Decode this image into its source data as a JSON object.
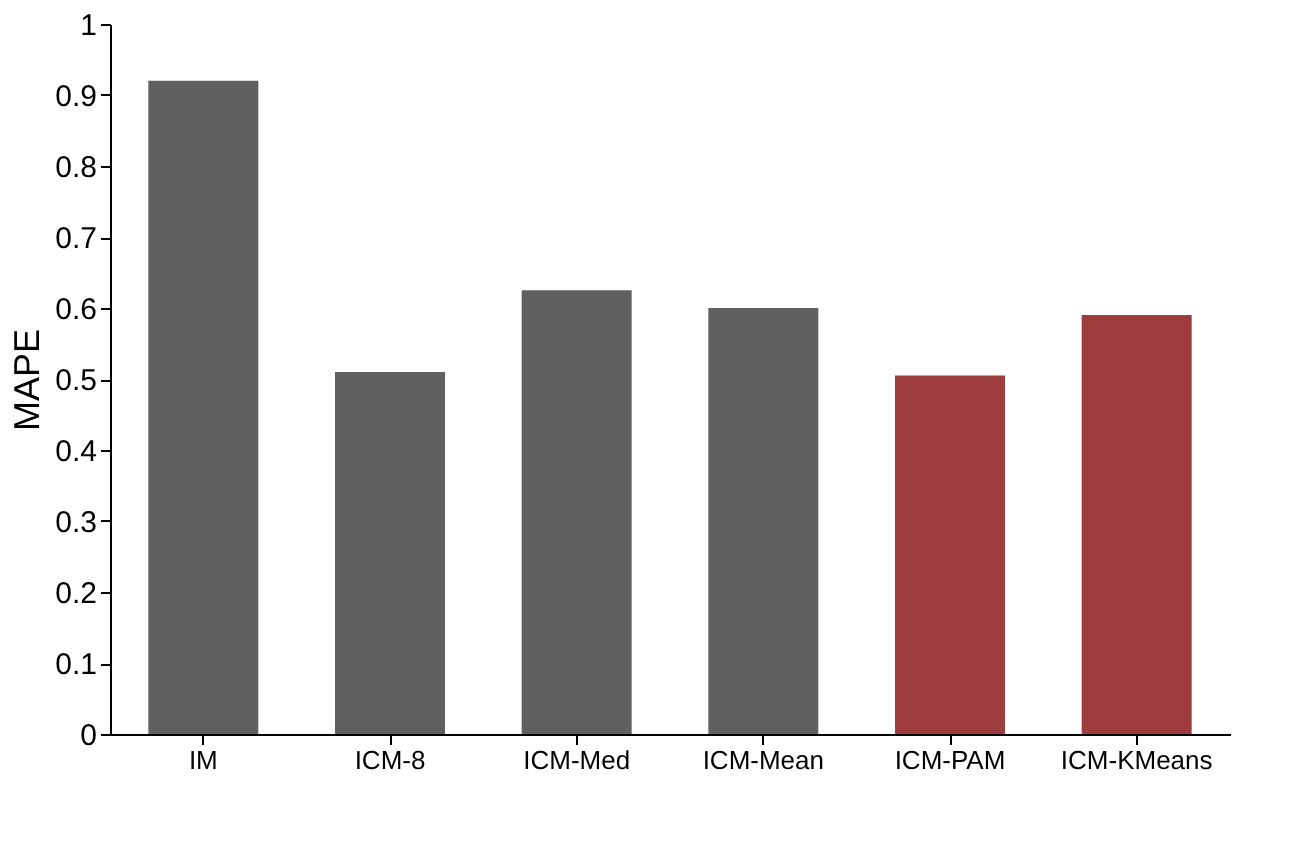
{
  "chart_data": {
    "type": "bar",
    "ylabel": "MAPE",
    "categories": [
      "IM",
      "ICM-8",
      "ICM-Med",
      "ICM-Mean",
      "ICM-PAM",
      "ICM-KMeans"
    ],
    "values": [
      0.92,
      0.51,
      0.625,
      0.6,
      0.505,
      0.59
    ],
    "colors": [
      "#444444",
      "#444444",
      "#444444",
      "#444444",
      "#8b1a1a",
      "#8b1a1a"
    ],
    "ylim": [
      0,
      1
    ],
    "yticks": [
      0,
      0.1,
      0.2,
      0.3,
      0.4,
      0.5,
      0.6,
      0.7,
      0.8,
      0.9,
      1
    ],
    "grid": false
  }
}
